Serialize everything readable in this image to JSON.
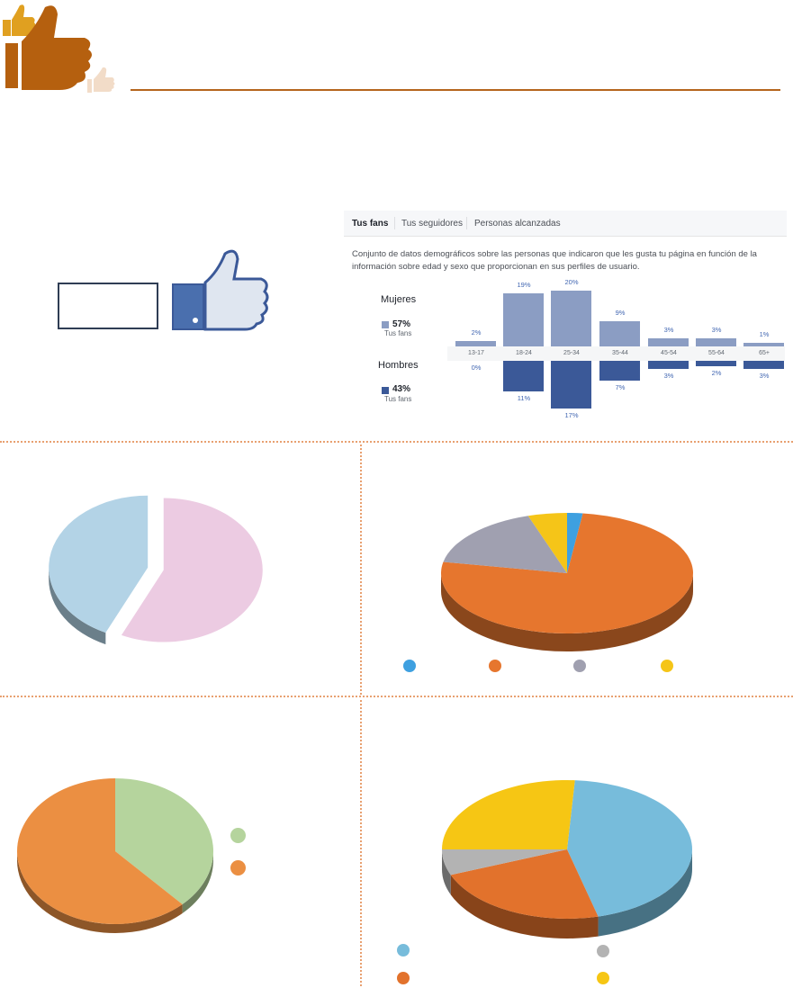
{
  "header": {
    "rule_color": "#b5651d"
  },
  "icons": {
    "logo": "thumbs-up-icon",
    "like": "facebook-like-icon"
  },
  "facebook_panel": {
    "tabs": [
      "Tus fans",
      "Tus seguidores",
      "Personas alcanzadas"
    ],
    "description": "Conjunto de datos demográficos sobre las personas que indicaron que les gusta tu página en función de la información sobre edad y sexo que proporcionan en sus perfiles de usuario.",
    "women": {
      "label": "Mujeres",
      "percent": "57%",
      "sub": "Tus fans",
      "color": "#8b9dc3"
    },
    "men": {
      "label": "Hombres",
      "percent": "43%",
      "sub": "Tus fans",
      "color": "#3b5998"
    }
  },
  "chart_data": [
    {
      "type": "bar",
      "categories": [
        "13-17",
        "18-24",
        "25-34",
        "35-44",
        "45-54",
        "55-64",
        "65+"
      ],
      "series": [
        {
          "name": "Mujeres",
          "values": [
            2,
            19,
            20,
            9,
            3,
            3,
            1
          ],
          "labels": [
            "2%",
            "19%",
            "20%",
            "9%",
            "3%",
            "3%",
            "1%"
          ]
        },
        {
          "name": "Hombres",
          "values": [
            0,
            11,
            17,
            7,
            3,
            2,
            3
          ],
          "labels": [
            "0%",
            "11%",
            "17%",
            "7%",
            "3%",
            "2%",
            "3%"
          ]
        }
      ]
    },
    {
      "type": "pie",
      "values": [
        43,
        57
      ],
      "colors": [
        "#b3d3e6",
        "#eccbe2"
      ],
      "exploded": true
    },
    {
      "type": "pie",
      "values": [
        2,
        76,
        17,
        5
      ],
      "colors": [
        "#3ea0e0",
        "#e6762e",
        "#a0a0b0",
        "#f5c518"
      ]
    },
    {
      "type": "pie",
      "values": [
        38,
        62
      ],
      "colors": [
        "#b5d49d",
        "#eb8f42"
      ]
    },
    {
      "type": "pie",
      "values": [
        45,
        23,
        6,
        26
      ],
      "colors": [
        "#77bcdb",
        "#e2722c",
        "#b3b3b3",
        "#f6c614"
      ]
    }
  ]
}
